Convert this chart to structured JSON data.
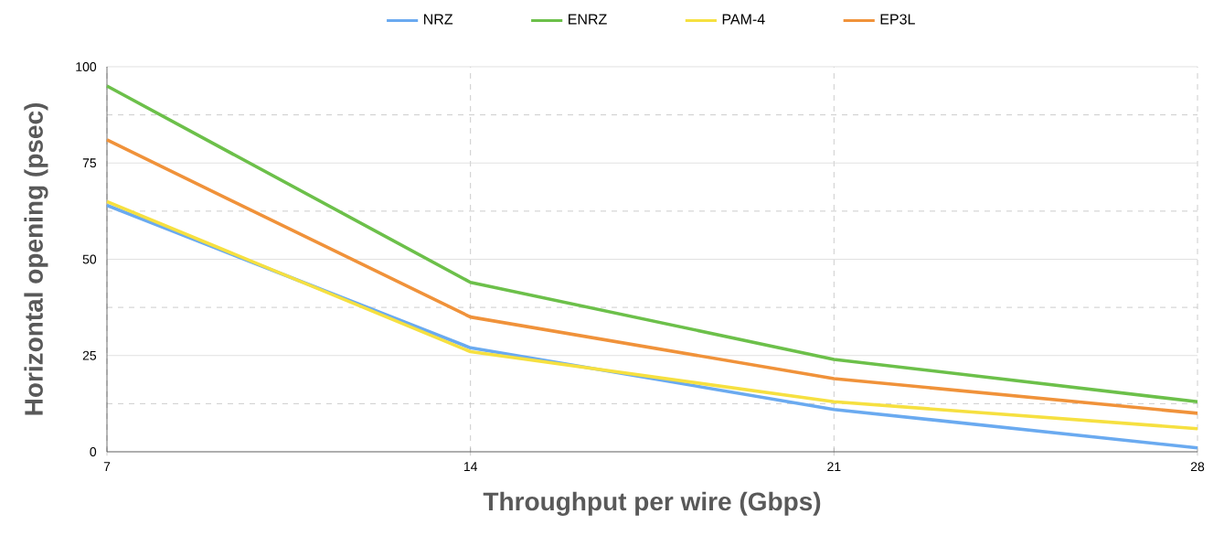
{
  "chart_data": {
    "type": "line",
    "xlabel": "Throughput per wire (Gbps)",
    "ylabel": "Horizontal opening (psec)",
    "x": [
      7,
      14,
      21,
      28
    ],
    "series": [
      {
        "name": "NRZ",
        "color": "#6aaaf0",
        "values": [
          64,
          27,
          11,
          1
        ]
      },
      {
        "name": "ENRZ",
        "color": "#6cc04a",
        "values": [
          95,
          44,
          24,
          13
        ]
      },
      {
        "name": "PAM-4",
        "color": "#f6e040",
        "values": [
          65,
          26,
          13,
          6
        ]
      },
      {
        "name": "EP3L",
        "color": "#f0923a",
        "values": [
          81,
          35,
          19,
          10
        ]
      }
    ],
    "xlim": [
      7,
      28
    ],
    "xticks": [
      7,
      14,
      21,
      28
    ],
    "ylim": [
      0,
      100
    ],
    "yticks": [
      0,
      25,
      50,
      75,
      100
    ],
    "grid": true,
    "legend": "top",
    "marker": "none",
    "line_style": "solid"
  }
}
